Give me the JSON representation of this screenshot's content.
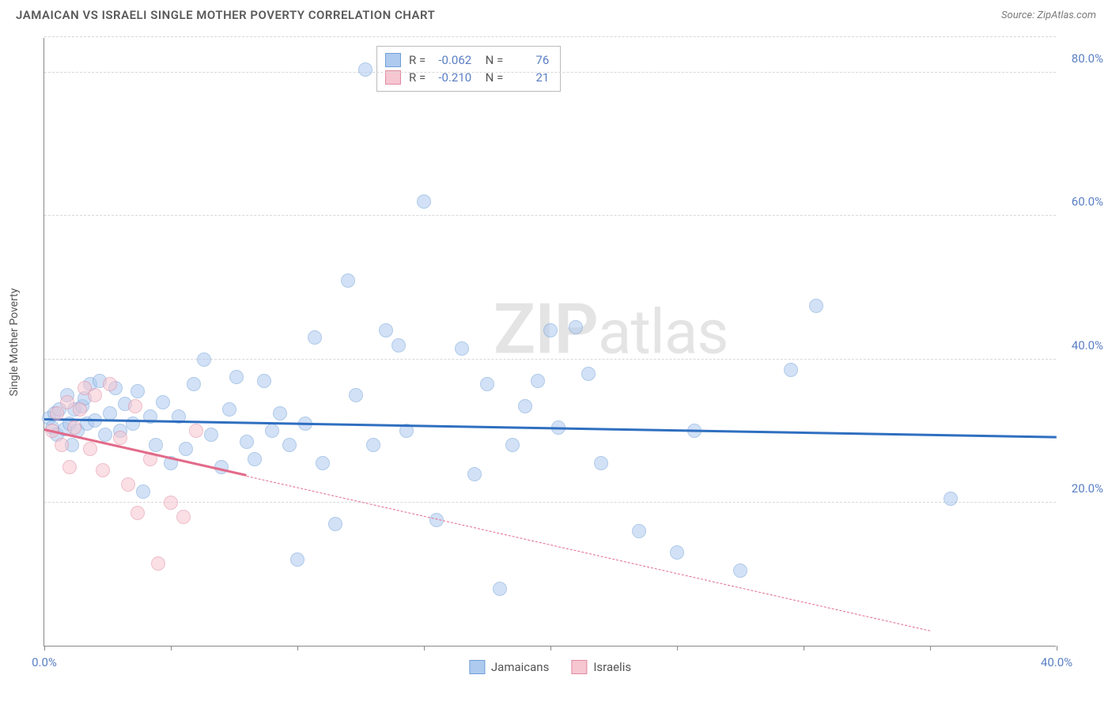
{
  "header": {
    "title": "JAMAICAN VS ISRAELI SINGLE MOTHER POVERTY CORRELATION CHART",
    "source": "Source: ZipAtlas.com"
  },
  "watermark": {
    "bold": "ZIP",
    "rest": "atlas"
  },
  "chart": {
    "type": "scatter",
    "y_axis_title": "Single Mother Poverty",
    "background_color": "#ffffff",
    "grid_color": "#d8d8d8",
    "axis_color": "#888888",
    "tick_label_color": "#5a7fc4",
    "xlim": [
      0,
      40
    ],
    "ylim": [
      0,
      85
    ],
    "x_ticks": [
      0,
      5,
      10,
      15,
      20,
      25,
      30,
      35,
      40
    ],
    "x_tick_labels": {
      "0": "0.0%",
      "40": "40.0%"
    },
    "y_gridlines": [
      20,
      40,
      60,
      80,
      85
    ],
    "y_tick_labels": {
      "20": "20.0%",
      "40": "40.0%",
      "60": "60.0%",
      "80": "80.0%"
    },
    "marker": {
      "radius": 9,
      "opacity": 0.55,
      "stroke_width": 1
    },
    "series": [
      {
        "name": "Jamaicans",
        "fill_color": "#aecaef",
        "stroke_color": "#6f9fd8",
        "line_color": "#2f6fc0",
        "line_width": 3,
        "R": "-0.062",
        "N": "76",
        "regression": {
          "x1": 0,
          "y1": 31.5,
          "x2": 40,
          "y2": 29.0,
          "solid_until_x": 40
        },
        "points": [
          [
            0.2,
            31.8
          ],
          [
            0.3,
            30.5
          ],
          [
            0.4,
            32.5
          ],
          [
            0.5,
            29.5
          ],
          [
            0.6,
            33.0
          ],
          [
            0.8,
            30.2
          ],
          [
            0.9,
            35.0
          ],
          [
            1.0,
            31.0
          ],
          [
            1.1,
            28.0
          ],
          [
            1.2,
            33.0
          ],
          [
            1.3,
            30.0
          ],
          [
            1.5,
            33.5
          ],
          [
            1.6,
            34.5
          ],
          [
            1.7,
            31.0
          ],
          [
            1.8,
            36.5
          ],
          [
            2.0,
            31.5
          ],
          [
            2.2,
            37.0
          ],
          [
            2.4,
            29.5
          ],
          [
            2.6,
            32.5
          ],
          [
            2.8,
            36.0
          ],
          [
            3.0,
            30.0
          ],
          [
            3.2,
            33.8
          ],
          [
            3.5,
            31.0
          ],
          [
            3.7,
            35.5
          ],
          [
            3.9,
            21.5
          ],
          [
            4.2,
            32.0
          ],
          [
            4.4,
            28.0
          ],
          [
            4.7,
            34.0
          ],
          [
            5.0,
            25.5
          ],
          [
            5.3,
            32.0
          ],
          [
            5.6,
            27.5
          ],
          [
            5.9,
            36.5
          ],
          [
            6.3,
            40.0
          ],
          [
            6.6,
            29.5
          ],
          [
            7.0,
            25.0
          ],
          [
            7.3,
            33.0
          ],
          [
            7.6,
            37.5
          ],
          [
            8.0,
            28.5
          ],
          [
            8.3,
            26.0
          ],
          [
            8.7,
            37.0
          ],
          [
            9.0,
            30.0
          ],
          [
            9.3,
            32.5
          ],
          [
            9.7,
            28.0
          ],
          [
            10.0,
            12.0
          ],
          [
            10.3,
            31.0
          ],
          [
            10.7,
            43.0
          ],
          [
            11.0,
            25.5
          ],
          [
            11.5,
            17.0
          ],
          [
            12.0,
            51.0
          ],
          [
            12.3,
            35.0
          ],
          [
            12.7,
            80.5
          ],
          [
            13.0,
            28.0
          ],
          [
            13.5,
            44.0
          ],
          [
            14.0,
            42.0
          ],
          [
            14.3,
            30.0
          ],
          [
            15.0,
            62.0
          ],
          [
            15.5,
            17.5
          ],
          [
            16.5,
            41.5
          ],
          [
            17.0,
            24.0
          ],
          [
            17.5,
            36.5
          ],
          [
            18.0,
            8.0
          ],
          [
            18.5,
            28.0
          ],
          [
            19.0,
            33.5
          ],
          [
            19.5,
            37.0
          ],
          [
            20.0,
            44.0
          ],
          [
            20.3,
            30.5
          ],
          [
            21.0,
            44.5
          ],
          [
            21.5,
            38.0
          ],
          [
            22.0,
            25.5
          ],
          [
            23.5,
            16.0
          ],
          [
            25.0,
            13.0
          ],
          [
            25.7,
            30.0
          ],
          [
            27.5,
            10.5
          ],
          [
            29.5,
            38.5
          ],
          [
            30.5,
            47.5
          ],
          [
            35.8,
            20.5
          ]
        ]
      },
      {
        "name": "Israelis",
        "fill_color": "#f6c6d1",
        "stroke_color": "#e08aa0",
        "line_color": "#e26a8a",
        "line_width": 3,
        "R": "-0.210",
        "N": "21",
        "regression": {
          "x1": 0,
          "y1": 30.0,
          "x2": 35,
          "y2": 2.0,
          "solid_until_x": 8.0
        },
        "points": [
          [
            0.3,
            30.0
          ],
          [
            0.5,
            32.5
          ],
          [
            0.7,
            28.0
          ],
          [
            0.9,
            34.0
          ],
          [
            1.0,
            25.0
          ],
          [
            1.2,
            30.5
          ],
          [
            1.4,
            33.0
          ],
          [
            1.6,
            36.0
          ],
          [
            1.8,
            27.5
          ],
          [
            2.0,
            35.0
          ],
          [
            2.3,
            24.5
          ],
          [
            2.6,
            36.5
          ],
          [
            3.0,
            29.0
          ],
          [
            3.3,
            22.5
          ],
          [
            3.6,
            33.5
          ],
          [
            3.7,
            18.5
          ],
          [
            4.2,
            26.0
          ],
          [
            4.5,
            11.5
          ],
          [
            5.0,
            20.0
          ],
          [
            5.5,
            18.0
          ],
          [
            6.0,
            30.0
          ]
        ]
      }
    ],
    "legend": {
      "items": [
        "Jamaicans",
        "Israelis"
      ]
    }
  }
}
